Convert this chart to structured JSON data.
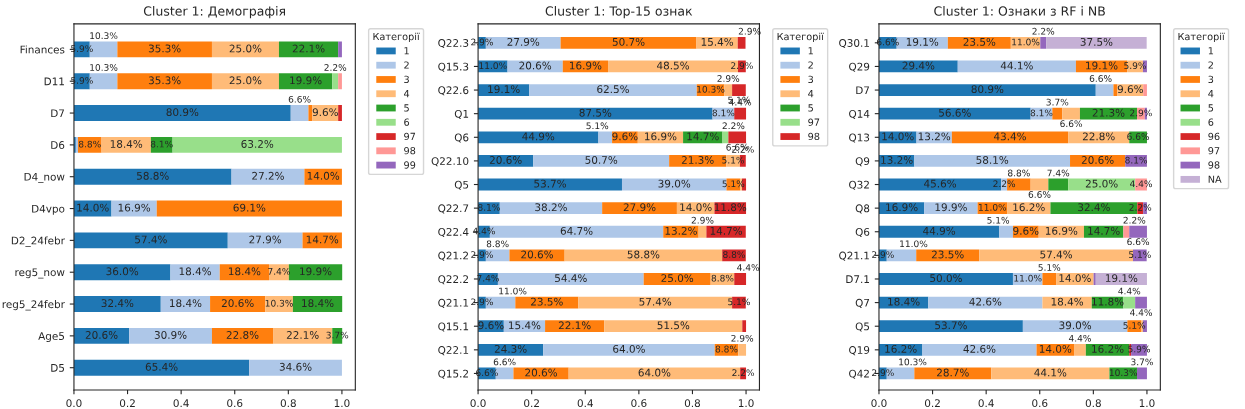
{
  "chart_data": [
    {
      "type": "bar",
      "orientation": "horizontal",
      "stacked": true,
      "title": "Cluster 1: Демографія",
      "legend_title": "Категорії",
      "legend": "top right",
      "categories": [
        "Finances",
        "D11",
        "D7",
        "D6",
        "D4_now",
        "D4vpo",
        "D2_24febr",
        "reg5_now",
        "reg5_24febr",
        "Age5",
        "D5"
      ],
      "xlim": [
        0,
        1.05
      ],
      "xticks": [
        {
          "value": 0,
          "label": "0.0"
        },
        {
          "value": 0.2,
          "label": "0.2"
        },
        {
          "value": 0.4,
          "label": "0.4"
        },
        {
          "value": 0.6,
          "label": "0.6"
        },
        {
          "value": 0.8,
          "label": "0.8"
        },
        {
          "value": 1,
          "label": "1.0"
        }
      ],
      "series": [
        {
          "name": "1",
          "color": "#1f77b4",
          "values": [
            0.059,
            0.059,
            0.809,
            0.007,
            0.588,
            0.14,
            0.574,
            0.36,
            0.324,
            0.206,
            0.654
          ],
          "value_labels": [
            "5.9%",
            "5.9%",
            "80.9%",
            null,
            "58.8%",
            "14.0%",
            "57.4%",
            "36.0%",
            "32.4%",
            "20.6%",
            "65.4%"
          ]
        },
        {
          "name": "2",
          "color": "#aec7e8",
          "values": [
            0.103,
            0.103,
            0.066,
            0.008,
            0.272,
            0.169,
            0.279,
            0.184,
            0.184,
            0.309,
            0.346
          ],
          "value_labels": [
            "10.3%",
            "10.3%",
            "6.6%",
            null,
            "27.2%",
            "16.9%",
            "27.9%",
            "18.4%",
            "18.4%",
            "30.9%",
            "34.6%"
          ]
        },
        {
          "name": "3",
          "color": "#ff7f0e",
          "values": [
            0.353,
            0.353,
            0.015,
            0.088,
            0.14,
            0.691,
            0.147,
            0.184,
            0.206,
            0.228,
            null
          ],
          "value_labels": [
            "35.3%",
            "35.3%",
            null,
            "8.8%",
            "14.0%",
            "69.1%",
            "14.7%",
            "18.4%",
            "20.6%",
            "22.8%",
            null
          ]
        },
        {
          "name": "4",
          "color": "#ffbb78",
          "values": [
            0.25,
            0.25,
            0.096,
            0.184,
            null,
            null,
            null,
            0.074,
            0.103,
            0.221,
            null
          ],
          "value_labels": [
            "25.0%",
            "25.0%",
            "9.6%",
            "18.4%",
            null,
            null,
            null,
            "7.4%",
            "10.3%",
            "22.1%",
            null
          ]
        },
        {
          "name": "5",
          "color": "#2ca02c",
          "values": [
            0.221,
            0.199,
            null,
            0.081,
            null,
            null,
            null,
            0.199,
            0.184,
            0.037,
            null
          ],
          "value_labels": [
            "22.1%",
            "19.9%",
            null,
            "8.1%",
            null,
            null,
            null,
            "19.9%",
            "18.4%",
            "3.7%",
            null
          ]
        },
        {
          "name": "6",
          "color": "#98df8a",
          "values": [
            null,
            0.022,
            null,
            0.632,
            null,
            null,
            null,
            null,
            null,
            null,
            null
          ],
          "value_labels": [
            null,
            "2.2%",
            null,
            "63.2%",
            null,
            null,
            null,
            null,
            null,
            null,
            null
          ]
        },
        {
          "name": "97",
          "color": "#d62728",
          "values": [
            null,
            null,
            0.014,
            null,
            null,
            null,
            null,
            null,
            null,
            null,
            null
          ]
        },
        {
          "name": "98",
          "color": "#ff9896",
          "values": [
            null,
            0.014,
            null,
            null,
            null,
            null,
            null,
            null,
            null,
            null,
            null
          ]
        },
        {
          "name": "99",
          "color": "#9467bd",
          "values": [
            0.014,
            null,
            null,
            null,
            null,
            null,
            null,
            null,
            null,
            null,
            null
          ]
        }
      ]
    },
    {
      "type": "bar",
      "orientation": "horizontal",
      "stacked": true,
      "title": "Cluster 1: Top-15 ознак",
      "legend_title": "Категорії",
      "legend": "top right",
      "categories": [
        "Q22.3",
        "Q15.3",
        "Q22.6",
        "Q1",
        "Q6",
        "Q22.10",
        "Q5",
        "Q22.7",
        "Q22.4",
        "Q21.2",
        "Q22.2",
        "Q21.1",
        "Q15.1",
        "Q22.1",
        "Q15.2"
      ],
      "xlim": [
        0,
        1.05
      ],
      "xticks": [
        {
          "value": 0,
          "label": "0.0"
        },
        {
          "value": 0.2,
          "label": "0.2"
        },
        {
          "value": 0.4,
          "label": "0.4"
        },
        {
          "value": 0.6,
          "label": "0.6"
        },
        {
          "value": 0.8,
          "label": "0.8"
        },
        {
          "value": 1,
          "label": "1.0"
        }
      ],
      "series": [
        {
          "name": "1",
          "color": "#1f77b4",
          "values": [
            0.029,
            0.11,
            0.191,
            0.875,
            0.449,
            0.206,
            0.537,
            0.081,
            0.044,
            0.029,
            0.074,
            0.029,
            0.096,
            0.243,
            0.066
          ],
          "value_labels": [
            "2.9%",
            "11.0%",
            "19.1%",
            "87.5%",
            "44.9%",
            "20.6%",
            "53.7%",
            "8.1%",
            "4.4%",
            "2.9%",
            "7.4%",
            "2.9%",
            "9.6%",
            "24.3%",
            "6.6%"
          ]
        },
        {
          "name": "2",
          "color": "#aec7e8",
          "values": [
            0.279,
            0.206,
            0.625,
            0.081,
            0.051,
            0.507,
            0.39,
            0.382,
            0.647,
            0.088,
            0.544,
            0.11,
            0.154,
            0.64,
            0.066
          ],
          "value_labels": [
            "27.9%",
            "20.6%",
            "62.5%",
            "8.1%",
            "5.1%",
            "50.7%",
            "39.0%",
            "38.2%",
            "64.7%",
            "8.8%",
            "54.4%",
            "11.0%",
            "15.4%",
            "64.0%",
            "6.6%"
          ]
        },
        {
          "name": "3",
          "color": "#ff7f0e",
          "values": [
            0.507,
            0.169,
            0.103,
            null,
            0.096,
            0.213,
            0.051,
            0.279,
            0.132,
            0.206,
            0.25,
            0.235,
            0.221,
            0.088,
            0.206
          ],
          "value_labels": [
            "50.7%",
            "16.9%",
            "10.3%",
            null,
            "9.6%",
            "21.3%",
            "5.1%",
            "27.9%",
            "13.2%",
            "20.6%",
            "25.0%",
            "23.5%",
            "22.1%",
            "8.8%",
            "20.6%"
          ]
        },
        {
          "name": "4",
          "color": "#ffbb78",
          "values": [
            0.154,
            0.485,
            0.029,
            null,
            0.169,
            0.051,
            0.007,
            0.14,
            0.029,
            0.588,
            0.088,
            0.574,
            0.515,
            0.029,
            0.64
          ],
          "value_labels": [
            "15.4%",
            "48.5%",
            "2.9%",
            null,
            "16.9%",
            "5.1%",
            null,
            "14.0%",
            "2.9%",
            "58.8%",
            "8.8%",
            "57.4%",
            "51.5%",
            "2.9%",
            "64.0%"
          ]
        },
        {
          "name": "5",
          "color": "#2ca02c",
          "values": [
            null,
            null,
            null,
            null,
            0.147,
            null,
            null,
            null,
            null,
            null,
            null,
            null,
            null,
            null,
            null
          ],
          "value_labels": [
            null,
            null,
            null,
            null,
            "14.7%",
            null,
            null,
            null,
            null,
            null,
            null,
            null,
            null,
            null,
            null
          ]
        },
        {
          "name": "97",
          "color": "#98df8a",
          "values": [
            null,
            null,
            null,
            null,
            0.022,
            null,
            null,
            null,
            null,
            null,
            null,
            null,
            null,
            null,
            null
          ],
          "value_labels": [
            null,
            null,
            null,
            null,
            "2.2%",
            null,
            null,
            null,
            null,
            null,
            null,
            null,
            null,
            null,
            null
          ]
        },
        {
          "name": "98",
          "color": "#d62728",
          "values": [
            0.029,
            0.029,
            0.051,
            0.044,
            0.066,
            0.022,
            0.015,
            0.118,
            0.147,
            0.088,
            0.044,
            0.051,
            0.014,
            null,
            0.022
          ],
          "value_labels": [
            "2.9%",
            "2.9%",
            "5.1%",
            "4.4%",
            "6.6%",
            "2.2%",
            null,
            "11.8%",
            "14.7%",
            "8.8%",
            "4.4%",
            "5.1%",
            null,
            null,
            "2.2%"
          ]
        }
      ]
    },
    {
      "type": "bar",
      "orientation": "horizontal",
      "stacked": true,
      "title": "Cluster 1: Ознаки з RF і NB",
      "legend_title": "Категорії",
      "legend": "top right",
      "categories": [
        "Q30.1",
        "Q29",
        "D7",
        "Q14",
        "Q13",
        "Q9",
        "Q32",
        "Q8",
        "Q6",
        "Q21.1",
        "D7.1",
        "Q7",
        "Q5",
        "Q19",
        "Q42"
      ],
      "xlim": [
        0,
        1.05
      ],
      "xticks": [
        {
          "value": 0,
          "label": "0.0"
        },
        {
          "value": 0.2,
          "label": "0.2"
        },
        {
          "value": 0.4,
          "label": "0.4"
        },
        {
          "value": 0.6,
          "label": "0.6"
        },
        {
          "value": 0.8,
          "label": "0.8"
        },
        {
          "value": 1,
          "label": "1.0"
        }
      ],
      "series": [
        {
          "name": "1",
          "color": "#1f77b4",
          "values": [
            0.066,
            0.294,
            0.809,
            0.566,
            0.14,
            0.132,
            0.456,
            0.169,
            0.449,
            0.029,
            0.5,
            0.184,
            0.537,
            0.162,
            0.029
          ],
          "value_labels": [
            "6.6%",
            "29.4%",
            "80.9%",
            "56.6%",
            "14.0%",
            "13.2%",
            "45.6%",
            "16.9%",
            "44.9%",
            "2.9%",
            "50.0%",
            "18.4%",
            "53.7%",
            "16.2%",
            "2.9%"
          ]
        },
        {
          "name": "2",
          "color": "#aec7e8",
          "values": [
            0.191,
            0.441,
            0.066,
            0.081,
            0.132,
            0.581,
            0.022,
            0.199,
            0.051,
            0.11,
            0.11,
            0.426,
            0.39,
            0.426,
            0.103
          ],
          "value_labels": [
            "19.1%",
            "44.1%",
            "6.6%",
            "8.1%",
            "13.2%",
            "58.1%",
            "2.2%",
            "19.9%",
            "5.1%",
            "11.0%",
            "11.0%",
            "42.6%",
            "39.0%",
            "42.6%",
            "10.3%"
          ]
        },
        {
          "name": "3",
          "color": "#ff7f0e",
          "values": [
            0.235,
            0.191,
            0.015,
            0.037,
            0.434,
            0.206,
            0.088,
            0.11,
            0.096,
            0.235,
            0.051,
            null,
            0.051,
            0.14,
            0.287
          ],
          "value_labels": [
            "23.5%",
            "19.1%",
            null,
            "3.7%",
            "43.4%",
            "20.6%",
            "8.8%",
            "11.0%",
            "9.6%",
            "23.5%",
            "5.1%",
            null,
            "5.1%",
            "14.0%",
            "28.7%"
          ]
        },
        {
          "name": "4",
          "color": "#ffbb78",
          "values": [
            0.11,
            0.059,
            0.096,
            0.066,
            0.228,
            null,
            0.066,
            0.162,
            0.169,
            0.574,
            0.14,
            0.184,
            0.007,
            0.044,
            0.441
          ],
          "value_labels": [
            "11.0%",
            "5.9%",
            "9.6%",
            "6.6%",
            "22.8%",
            null,
            "6.6%",
            "16.2%",
            "16.9%",
            "57.4%",
            "14.0%",
            "18.4%",
            null,
            "4.4%",
            "44.1%"
          ]
        },
        {
          "name": "5",
          "color": "#2ca02c",
          "values": [
            null,
            null,
            null,
            0.213,
            0.066,
            null,
            0.074,
            0.324,
            0.147,
            null,
            null,
            0.118,
            null,
            0.162,
            0.103
          ],
          "value_labels": [
            null,
            null,
            null,
            "21.3%",
            "6.6%",
            null,
            "7.4%",
            "32.4%",
            "14.7%",
            null,
            null,
            "11.8%",
            null,
            "16.2%",
            "10.3%"
          ]
        },
        {
          "name": "6",
          "color": "#98df8a",
          "values": [
            null,
            null,
            null,
            null,
            null,
            null,
            0.25,
            null,
            null,
            null,
            null,
            0.044,
            null,
            null,
            null
          ],
          "value_labels": [
            null,
            null,
            null,
            null,
            null,
            null,
            "25.0%",
            null,
            null,
            null,
            null,
            "4.4%",
            null,
            null,
            null
          ]
        },
        {
          "name": "96",
          "color": "#d62728",
          "values": [
            null,
            null,
            null,
            null,
            null,
            null,
            null,
            0.022,
            null,
            null,
            null,
            null,
            null,
            0.007,
            null
          ],
          "value_labels": [
            null,
            null,
            null,
            null,
            null,
            null,
            null,
            "2.2%",
            null,
            null,
            null,
            null,
            null,
            null,
            null
          ]
        },
        {
          "name": "97",
          "color": "#ff9896",
          "values": [
            null,
            null,
            0.014,
            0.029,
            null,
            null,
            0.044,
            null,
            0.022,
            null,
            null,
            null,
            null,
            null,
            null
          ],
          "value_labels": [
            null,
            null,
            null,
            "2.9%",
            null,
            null,
            "4.4%",
            null,
            "2.2%",
            null,
            null,
            null,
            null,
            null,
            null
          ]
        },
        {
          "name": "98",
          "color": "#9467bd",
          "values": [
            0.022,
            0.015,
            null,
            0.008,
            null,
            0.081,
            null,
            0.014,
            0.066,
            0.051,
            0.008,
            0.044,
            0.015,
            0.059,
            0.037
          ],
          "value_labels": [
            "2.2%",
            null,
            null,
            null,
            null,
            "8.1%",
            null,
            null,
            "6.6%",
            "5.1%",
            null,
            "4.4%",
            null,
            "5.9%",
            "3.7%"
          ]
        },
        {
          "name": "NA",
          "color": "#c5b0d5",
          "values": [
            0.375,
            null,
            null,
            null,
            null,
            null,
            null,
            null,
            null,
            null,
            0.191,
            null,
            null,
            null,
            null
          ],
          "value_labels": [
            "37.5%",
            null,
            null,
            null,
            null,
            null,
            null,
            null,
            null,
            null,
            "19.1%",
            null,
            null,
            null,
            null
          ]
        }
      ]
    }
  ]
}
